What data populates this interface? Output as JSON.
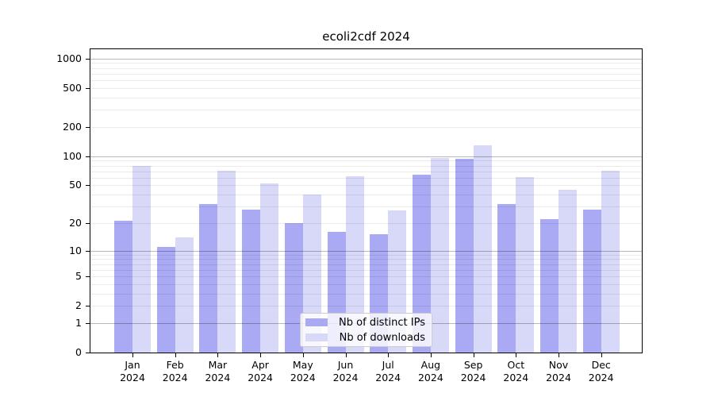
{
  "chart_data": {
    "type": "bar",
    "title": "ecoli2cdf 2024",
    "categories": [
      "Jan",
      "Feb",
      "Mar",
      "Apr",
      "May",
      "Jun",
      "Jul",
      "Aug",
      "Sep",
      "Oct",
      "Nov",
      "Dec"
    ],
    "year_label": "2024",
    "series": [
      {
        "name": "Nb of distinct IPs",
        "color": "#a9a9f4",
        "values": [
          21,
          11,
          32,
          28,
          20,
          16,
          15,
          65,
          94,
          32,
          22,
          28
        ]
      },
      {
        "name": "Nb of downloads",
        "color": "#d8d8f8",
        "values": [
          79,
          14,
          71,
          52,
          40,
          62,
          27,
          96,
          130,
          61,
          45,
          71
        ]
      }
    ],
    "y_tick_values": [
      0,
      1,
      2,
      5,
      10,
      20,
      50,
      100,
      200,
      500,
      1000
    ],
    "y_tick_labels": [
      "0",
      "1",
      "2",
      "5",
      "10",
      "20",
      "50",
      "100",
      "200",
      "500",
      "1000"
    ],
    "y_scale": "log10(1+x)",
    "ylim": [
      0,
      1250
    ],
    "grid": true,
    "legend_position": "lower center"
  },
  "colors": {
    "background": "#ffffff",
    "axis": "#000000",
    "grid_major": "#b6b6b6",
    "grid_minor": "#ebebeb",
    "bar_distinct_ips": "#a9a9f4",
    "bar_downloads": "#d8d8f8"
  }
}
